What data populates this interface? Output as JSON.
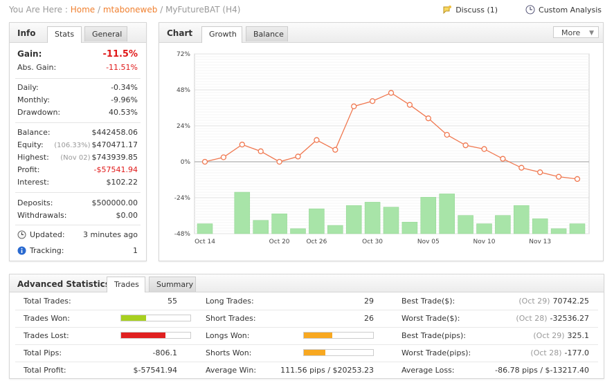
{
  "breadcrumb": {
    "prefix": "You Are Here :",
    "home": "Home",
    "sep1": "/",
    "user": "mtaboneweb",
    "sep2": "/",
    "current": "MyFutureBAT (H4)"
  },
  "topbar": {
    "discuss": "Discuss (1)",
    "custom": "Custom Analysis"
  },
  "info": {
    "title": "Info",
    "tabs": [
      "Stats",
      "General"
    ],
    "gain_label": "Gain:",
    "gain_value": "-11.5%",
    "abs_gain_label": "Abs. Gain:",
    "abs_gain_value": "-11.51%",
    "daily_label": "Daily:",
    "daily_value": "-0.34%",
    "monthly_label": "Monthly:",
    "monthly_value": "-9.96%",
    "drawdown_label": "Drawdown:",
    "drawdown_value": "40.53%",
    "balance_label": "Balance:",
    "balance_value": "$442458.06",
    "equity_label": "Equity:",
    "equity_note": "(106.33%)",
    "equity_value": "$470471.17",
    "highest_label": "Highest:",
    "highest_note": "(Nov 02)",
    "highest_value": "$743939.85",
    "profit_label": "Profit:",
    "profit_value": "-$57541.94",
    "interest_label": "Interest:",
    "interest_value": "$102.22",
    "deposits_label": "Deposits:",
    "deposits_value": "$500000.00",
    "withdrawals_label": "Withdrawals:",
    "withdrawals_value": "$0.00",
    "updated_label": "Updated:",
    "updated_value": "3 minutes ago",
    "tracking_label": "Tracking:",
    "tracking_value": "1"
  },
  "chart_panel": {
    "title": "Chart",
    "tabs": [
      "Growth",
      "Balance"
    ],
    "more": "More"
  },
  "chart_data": {
    "type": "line",
    "title": "",
    "xlabel": "",
    "ylabel": "",
    "ylim": [
      -48,
      72
    ],
    "y_ticks": [
      "72%",
      "48%",
      "24%",
      "0%",
      "-24%",
      "-48%"
    ],
    "y_tick_values": [
      72,
      48,
      24,
      0,
      -24,
      -48
    ],
    "x_tick_labels": [
      "Oct 14",
      "Oct 20",
      "Oct 26",
      "Oct 30",
      "Nov 05",
      "Nov 10",
      "Nov 13"
    ],
    "x_tick_index": [
      0,
      4,
      6,
      9,
      12,
      15,
      18
    ],
    "series": [
      {
        "values": [
          0,
          3,
          11.5,
          7,
          0,
          3.5,
          14.5,
          8,
          37,
          40.5,
          46,
          38,
          29,
          18,
          11,
          8.5,
          2,
          -4,
          -7,
          -10,
          -11.5
        ]
      }
    ],
    "bars": {
      "values": [
        6,
        0,
        25,
        8,
        12,
        3,
        15,
        5,
        17,
        19,
        16,
        7,
        22,
        24,
        11,
        6,
        11,
        17,
        9,
        3,
        6
      ]
    },
    "colors": {
      "line": "#f07850",
      "bar": "#a8e4a8",
      "bar_stripe": "#c8f0c8"
    }
  },
  "adv": {
    "title": "Advanced Statistics",
    "tabs": [
      "Trades",
      "Summary"
    ],
    "col1": [
      {
        "label": "Total Trades:",
        "value": "55"
      },
      {
        "label": "Trades Won:",
        "value": ""
      },
      {
        "label": "Trades Lost:",
        "value": ""
      },
      {
        "label": "Total Pips:",
        "value": "-806.1"
      },
      {
        "label": "Total Profit:",
        "value": "$-57541.94"
      }
    ],
    "col2": [
      {
        "label": "Long Trades:",
        "value": "29"
      },
      {
        "label": "Short Trades:",
        "value": "26"
      },
      {
        "label": "Longs Won:",
        "value": ""
      },
      {
        "label": "Shorts Won:",
        "value": ""
      },
      {
        "label": "Average Win:",
        "value": "111.56 pips / $20253.23"
      }
    ],
    "col3": [
      {
        "label": "Best Trade($):",
        "note": "(Oct 29)",
        "value": "70742.25"
      },
      {
        "label": "Worst Trade($):",
        "note": "(Oct 28)",
        "value": "-32536.27"
      },
      {
        "label": "Best Trade(pips):",
        "note": "(Oct 29)",
        "value": "325.1"
      },
      {
        "label": "Worst Trade(pips):",
        "note": "(Oct 28)",
        "value": "-177.0"
      },
      {
        "label": "Average Loss:",
        "note": "",
        "value": "-86.78 pips / $-13217.40"
      }
    ],
    "bars": {
      "trades_won": {
        "fraction": 0.36,
        "color": "#a8d020"
      },
      "trades_lost": {
        "fraction": 0.64,
        "color": "#e02020"
      },
      "longs_won": {
        "fraction": 0.41,
        "color": "#f8a820"
      },
      "shorts_won": {
        "fraction": 0.31,
        "color": "#f8a820"
      }
    }
  }
}
